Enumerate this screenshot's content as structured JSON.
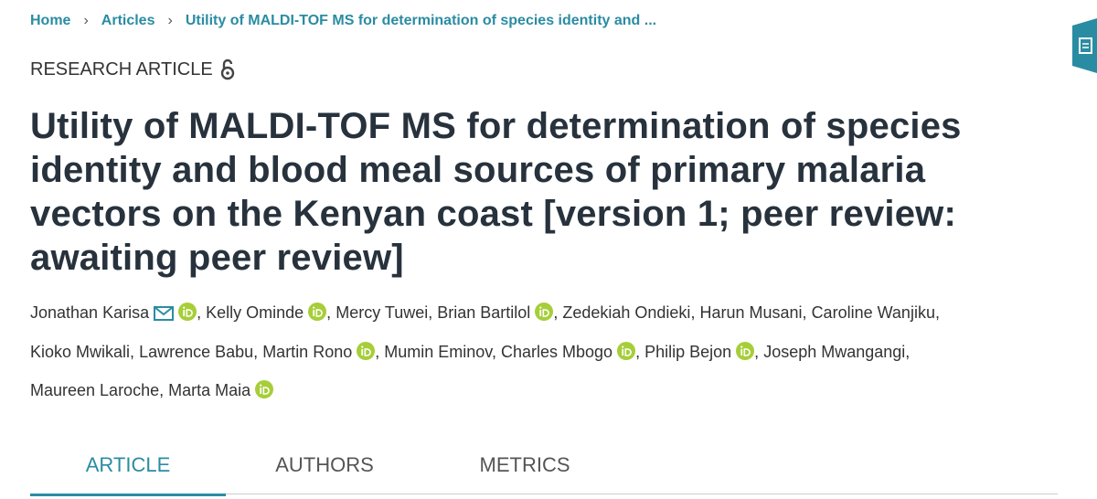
{
  "breadcrumb": {
    "items": [
      "Home",
      "Articles",
      "Utility of MALDI-TOF MS for determination of species identity and ..."
    ],
    "separator": "›"
  },
  "article_type": "RESEARCH ARTICLE",
  "title": "Utility of MALDI-TOF MS for determination of species identity and blood meal sources of primary malaria vectors on the Kenyan coast [version 1; peer review: awaiting peer review]",
  "author_separator": ",",
  "authors": [
    {
      "name": "Jonathan Karisa",
      "email": true,
      "orcid": true
    },
    {
      "name": "Kelly Ominde",
      "email": false,
      "orcid": true
    },
    {
      "name": "Mercy Tuwei",
      "email": false,
      "orcid": false
    },
    {
      "name": "Brian Bartilol",
      "email": false,
      "orcid": true
    },
    {
      "name": "Zedekiah Ondieki",
      "email": false,
      "orcid": false
    },
    {
      "name": "Harun Musani",
      "email": false,
      "orcid": false
    },
    {
      "name": "Caroline Wanjiku",
      "email": false,
      "orcid": false
    },
    {
      "name": "Kioko Mwikali",
      "email": false,
      "orcid": false
    },
    {
      "name": "Lawrence Babu",
      "email": false,
      "orcid": false
    },
    {
      "name": "Martin Rono",
      "email": false,
      "orcid": true
    },
    {
      "name": "Mumin Eminov",
      "email": false,
      "orcid": false
    },
    {
      "name": "Charles Mbogo",
      "email": false,
      "orcid": true
    },
    {
      "name": "Philip Bejon",
      "email": false,
      "orcid": true
    },
    {
      "name": "Joseph Mwangangi",
      "email": false,
      "orcid": false
    },
    {
      "name": "Maureen Laroche",
      "email": false,
      "orcid": false
    },
    {
      "name": "Marta Maia",
      "email": false,
      "orcid": true
    }
  ],
  "tabs": [
    {
      "label": "ARTICLE",
      "active": true
    },
    {
      "label": "AUTHORS",
      "active": false
    },
    {
      "label": "METRICS",
      "active": false
    }
  ]
}
